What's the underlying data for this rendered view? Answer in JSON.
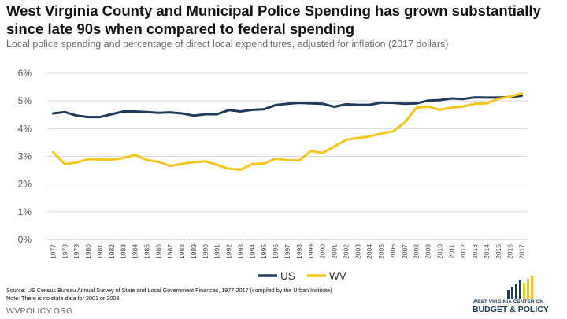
{
  "title": "West Virginia County and Municipal Police Spending has grown substantially since late 90s when compared to federal spending",
  "subtitle": "Local police spending and percentage of direct local expenditures, adjusted for inflation (2017 dollars)",
  "chart_data": {
    "type": "line",
    "x": [
      "1977",
      "1978",
      "1979",
      "1980",
      "1981",
      "1982",
      "1983",
      "1984",
      "1985",
      "1986",
      "1987",
      "1988",
      "1989",
      "1990",
      "1991",
      "1992",
      "1993",
      "1994",
      "1995",
      "1996",
      "1997",
      "1998",
      "1999",
      "2000",
      "2001",
      "2002",
      "2003",
      "2004",
      "2005",
      "2006",
      "2007",
      "2008",
      "2009",
      "2010",
      "2011",
      "2012",
      "2013",
      "2014",
      "2015",
      "2016",
      "2017"
    ],
    "y_ticks": [
      0,
      1,
      2,
      3,
      4,
      5,
      6
    ],
    "y_tick_labels": [
      "0%",
      "1%",
      "2%",
      "3%",
      "4%",
      "5%",
      "6%"
    ],
    "ylim": [
      0,
      6
    ],
    "grid": true,
    "legend_position": "bottom-center",
    "series": [
      {
        "name": "US",
        "color": "#1f3b5c",
        "values": [
          4.55,
          4.6,
          4.47,
          4.42,
          4.42,
          4.52,
          4.62,
          4.62,
          4.6,
          4.57,
          4.59,
          4.55,
          4.47,
          4.52,
          4.52,
          4.67,
          4.62,
          4.68,
          4.7,
          4.85,
          4.9,
          4.93,
          4.91,
          4.9,
          4.79,
          4.88,
          4.86,
          4.86,
          4.94,
          4.93,
          4.9,
          4.91,
          5.01,
          5.03,
          5.09,
          5.07,
          5.13,
          5.12,
          5.12,
          5.14,
          5.19
        ]
      },
      {
        "name": "WV",
        "color": "#f5c518",
        "values": [
          3.15,
          2.72,
          2.78,
          2.9,
          2.89,
          2.88,
          2.94,
          3.05,
          2.87,
          2.8,
          2.65,
          2.73,
          2.79,
          2.82,
          2.69,
          2.55,
          2.52,
          2.72,
          2.74,
          2.92,
          2.86,
          2.85,
          3.2,
          3.12,
          null,
          3.6,
          null,
          3.72,
          3.82,
          3.9,
          4.22,
          4.75,
          4.8,
          4.68,
          4.76,
          4.8,
          4.9,
          4.91,
          5.08,
          5.16,
          5.27
        ]
      }
    ]
  },
  "source_lines": [
    "Source: US Census Bureau Annual Survey of State and Local Government Finances, 1977-2017 (compiled by the Urban Institute)",
    "Note: There is no state data for 2001 or 2003."
  ],
  "footer_site": "WVPOLICY.ORG",
  "logo": {
    "line1": "WEST VIRGINIA CENTER ON",
    "line2": "BUDGET & POLICY",
    "bar_colors": [
      "#1f3b5c",
      "#f5c518"
    ]
  }
}
